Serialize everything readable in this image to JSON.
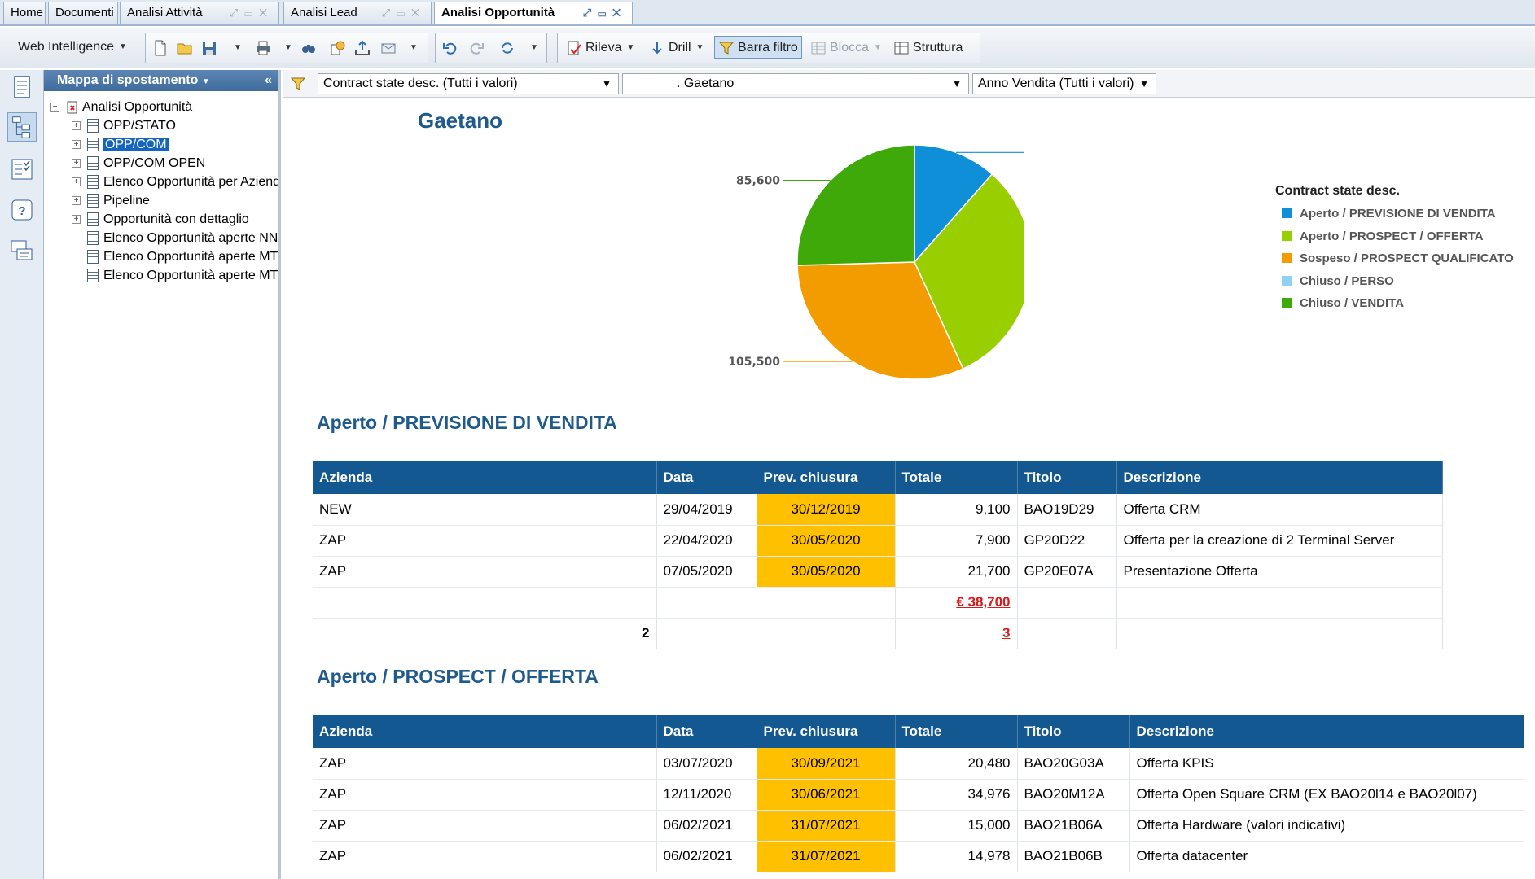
{
  "tabs": [
    {
      "label": "Home"
    },
    {
      "label": "Documenti"
    },
    {
      "label": "Analisi Attività"
    },
    {
      "label": "Analisi Lead"
    },
    {
      "label": "Analisi Opportunità"
    }
  ],
  "toolbar": {
    "web_intelligence": "Web Intelligence",
    "rileva": "Rileva",
    "drill": "Drill",
    "barra_filtro": "Barra filtro",
    "blocca": "Blocca",
    "struttura": "Struttura"
  },
  "nav": {
    "header": "Mappa di spostamento",
    "root": "Analisi Opportunità",
    "items": [
      {
        "label": "OPP/STATO"
      },
      {
        "label": "OPP/COM"
      },
      {
        "label": "OPP/COM OPEN"
      },
      {
        "label": "Elenco Opportunità per Aziend"
      },
      {
        "label": "Pipeline"
      },
      {
        "label": "Opportunità con dettaglio"
      },
      {
        "label": "Elenco Opportunità aperte NN"
      },
      {
        "label": "Elenco Opportunità aperte MT"
      },
      {
        "label": "Elenco Opportunità aperte MT"
      }
    ]
  },
  "filters": {
    "f1": "Contract state desc. (Tutti i valori)",
    "f2": ". Gaetano",
    "f3": "Anno Vendita (Tutti i valori)"
  },
  "report": {
    "name": "Gaetano",
    "legend_title": "Contract state desc.",
    "sections": [
      {
        "title": "Aperto / PREVISIONE DI VENDITA",
        "headers": [
          "Azienda",
          "Data",
          "Prev. chiusura",
          "Totale",
          "Titolo",
          "Descrizione"
        ],
        "rows": [
          [
            "NEW",
            "29/04/2019",
            "30/12/2019",
            "9,100",
            "BAO19D29",
            "Offerta CRM"
          ],
          [
            "ZAP",
            "22/04/2020",
            "30/05/2020",
            "7,900",
            "GP20D22",
            "Offerta per la creazione di  2 Terminal Server"
          ],
          [
            "ZAP",
            "07/05/2020",
            "30/05/2020",
            "21,700",
            "GP20E07A",
            "Presentazione Offerta"
          ]
        ],
        "total": "€ 38,700",
        "count_left": "2",
        "count_right": "3"
      },
      {
        "title": "Aperto / PROSPECT / OFFERTA",
        "headers": [
          "Azienda",
          "Data",
          "Prev. chiusura",
          "Totale",
          "Titolo",
          "Descrizione"
        ],
        "rows": [
          [
            "ZAP",
            "03/07/2020",
            "30/09/2021",
            "20,480",
            "BAO20G03A",
            "Offerta KPIS"
          ],
          [
            "ZAP",
            "12/11/2020",
            "30/06/2021",
            "34,976",
            "BAO20M12A",
            "Offerta Open Square CRM (EX BAO20l14 e BAO20l07)"
          ],
          [
            "ZAP",
            "06/02/2021",
            "31/07/2021",
            "15,000",
            "BAO21B06A",
            "Offerta Hardware (valori indicativi)"
          ],
          [
            "ZAP",
            "06/02/2021",
            "31/07/2021",
            "14,978",
            "BAO21B06B",
            "Offerta datacenter"
          ]
        ]
      }
    ]
  },
  "chart_data": {
    "type": "pie",
    "title": "",
    "legend_placement": "right",
    "slices": [
      {
        "label": "Aperto / PREVISIONE DI VENDITA",
        "value": 38700,
        "display": "38,700",
        "color": "#0f8fd8"
      },
      {
        "label": "Aperto / PROSPECT / OFFERTA",
        "value": 106614,
        "display": "106,614",
        "color": "#99cf00"
      },
      {
        "label": "Sospeso / PROSPECT QUALIFICATO",
        "value": 105500,
        "display": "105,500",
        "color": "#f39c00"
      },
      {
        "label": "Chiuso / PERSO",
        "value": 0,
        "display": "",
        "color": "#8fd1f0"
      },
      {
        "label": "Chiuso / VENDITA",
        "value": 85600,
        "display": "85,600",
        "color": "#3fa90a"
      }
    ]
  }
}
